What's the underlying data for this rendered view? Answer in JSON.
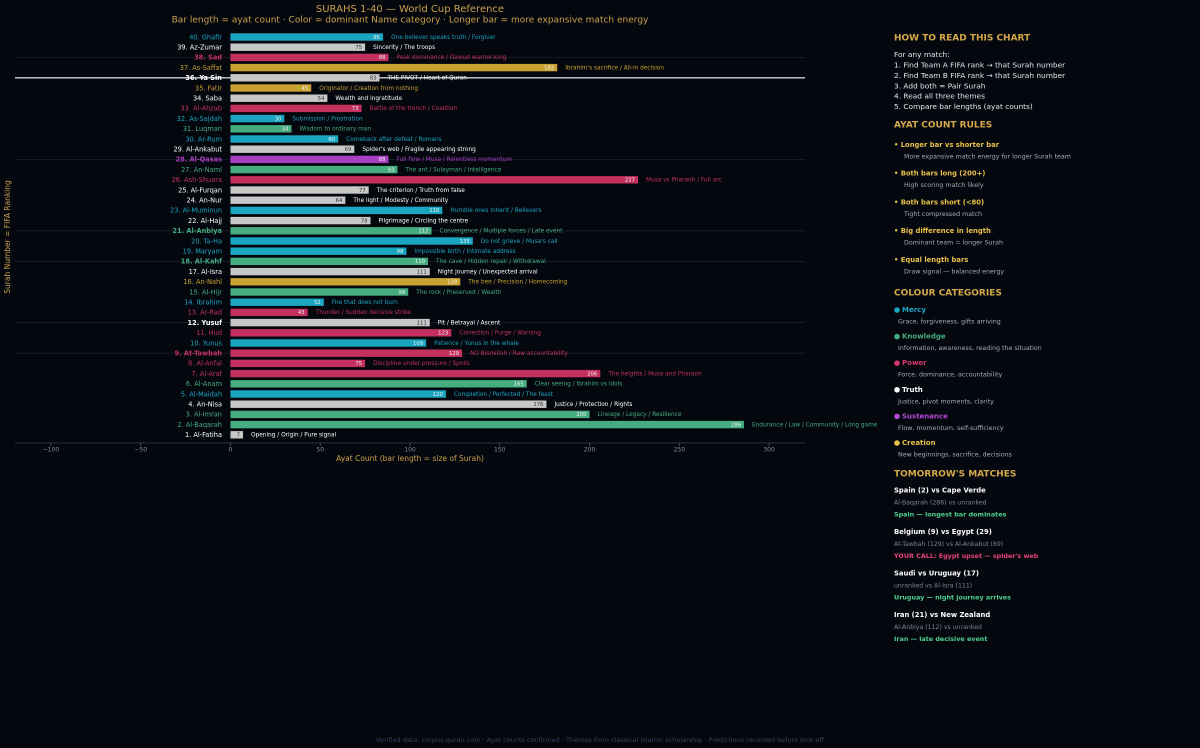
{
  "chart_data": {
    "type": "bar",
    "orientation": "horizontal",
    "title": "SURAHS 1-40 — World Cup Reference",
    "subtitle": "Bar length = ayat count  ·  Color = dominant Name category  ·  Longer bar = more expansive match energy",
    "xlabel": "Ayat Count (bar length = size of Surah)",
    "ylabel": "Surah Number = FIFA Ranking",
    "categories": [
      "40. Ghafir",
      "39. Az-Zumar",
      "38. Sad",
      "37. As-Saffat",
      "36. Ya Sin",
      "35. Fatir",
      "34. Saba",
      "33. Al-Ahzab",
      "32. As-Sajdah",
      "31. Luqman",
      "30. Ar-Rum",
      "29. Al-Ankabut",
      "28. Al-Qasas",
      "27. An-Naml",
      "26. Ash-Shuara",
      "25. Al-Furqan",
      "24. An-Nur",
      "23. Al-Muminun",
      "22. Al-Hajj",
      "21. Al-Anbiya",
      "20. Ta-Ha",
      "19. Maryam",
      "18. Al-Kahf",
      "17. Al-Isra",
      "16. An-Nahl",
      "15. Al-Hijr",
      "14. Ibrahim",
      "13. Ar-Rad",
      "12. Yusuf",
      "11. Hud",
      "10. Yunus",
      "9. At-Tawbah",
      "8. Al-Anfal",
      "7. Al-Araf",
      "6. Al-Anam",
      "5. Al-Maidah",
      "4. An-Nisa",
      "3. Al-Imran",
      "2. Al-Baqarah",
      "1. Al-Fatiha"
    ],
    "values": [
      85,
      75,
      88,
      182,
      83,
      45,
      54,
      73,
      30,
      34,
      60,
      69,
      88,
      93,
      227,
      77,
      64,
      118,
      78,
      112,
      135,
      98,
      110,
      111,
      128,
      99,
      52,
      43,
      111,
      123,
      109,
      129,
      75,
      206,
      165,
      120,
      176,
      200,
      286,
      7
    ],
    "colors": [
      "#1aa6c0",
      "#c8c8c8",
      "#c4315f",
      "#c9a332",
      "#c8c8c8",
      "#c9a332",
      "#c8c8c8",
      "#c4315f",
      "#1aa6c0",
      "#45ad7f",
      "#1aa6c0",
      "#c8c8c8",
      "#a93fc2",
      "#45ad7f",
      "#c4315f",
      "#c8c8c8",
      "#c8c8c8",
      "#1aa6c0",
      "#c8c8c8",
      "#45ad7f",
      "#1aa6c0",
      "#1aa6c0",
      "#45ad7f",
      "#c8c8c8",
      "#c9a332",
      "#45ad7f",
      "#1aa6c0",
      "#c4315f",
      "#c8c8c8",
      "#c4315f",
      "#1aa6c0",
      "#c4315f",
      "#c4315f",
      "#c4315f",
      "#45ad7f",
      "#1aa6c0",
      "#c8c8c8",
      "#45ad7f",
      "#45ad7f",
      "#c8c8c8"
    ],
    "themes": [
      "One believer speaks truth / Forgiver",
      "Sincerity / The troops",
      "Peak dominance / Dawud warrior-king",
      "Ibrahim's sacrifice / All-in decision",
      "THE PIVOT / Heart of Quran",
      "Originator / Creation from nothing",
      "Wealth and ingratitude",
      "Battle of the trench / Coalition",
      "Submission / Prostration",
      "Wisdom to ordinary man",
      "Comeback after defeat / Romans",
      "Spider's web / Fragile appearing strong",
      "Full flow / Musa / Relentless momentum",
      "The ant / Sulayman / Intelligence",
      "Musa vs Pharaoh / Full arc",
      "The criterion / Truth from false",
      "The light / Modesty / Community",
      "Humble ones inherit / Believers",
      "Pilgrimage / Circling the centre",
      "Convergence / Multiple forces / Late event",
      "Do not grieve / Musa's call",
      "Impossible birth / Intimate address",
      "The cave / Hidden repair / Withdrawal",
      "Night journey / Unexpected arrival",
      "The bee / Precision / Homecoming",
      "The rock / Preserved / Wealth",
      "Fire that does not burn",
      "Thunder / Sudden decisive strike",
      "Pit / Betrayal / Ascent",
      "Correction / Purge / Warning",
      "Patience / Yunus in the whale",
      "NO Bismillah / Raw accountability",
      "Discipline under pressure / Spoils",
      "The heights / Musa and Pharaoh",
      "Clear seeing / Ibrahim vs idols",
      "Completion / Perfected / The feast",
      "Justice / Protection / Rights",
      "Lineage / Legacy / Resilience",
      "Endurance / Law / Community / Long game",
      "Opening / Origin / Pure signal"
    ],
    "styles": [
      "normal",
      "normal",
      "bold",
      "normal",
      "pivot",
      "normal",
      "normal",
      "normal",
      "normal",
      "normal",
      "normal",
      "normal",
      "bold",
      "normal",
      "normal",
      "normal",
      "normal",
      "normal",
      "normal",
      "bold",
      "normal",
      "normal",
      "bold",
      "normal",
      "normal",
      "normal",
      "normal",
      "normal",
      "bold",
      "normal",
      "normal",
      "bold",
      "normal",
      "normal",
      "normal",
      "normal",
      "normal",
      "normal",
      "normal",
      "normal"
    ],
    "xlim": [
      -120,
      320
    ],
    "xticks": [
      {
        "value": -100,
        "label": "−100"
      },
      {
        "value": -50,
        "label": "−50"
      },
      0,
      50,
      100,
      150,
      200,
      250,
      300
    ]
  },
  "side_panel": {
    "how_to_read": {
      "heading": "HOW TO READ THIS CHART",
      "intro": "For any match:",
      "steps": [
        "1. Find Team A FIFA rank → that Surah number",
        "2. Find Team B FIFA rank → that Surah number",
        "3. Add both = Pair Surah",
        "4. Read all three themes",
        "5. Compare bar lengths (ayat counts)"
      ]
    },
    "rules": {
      "heading": "AYAT COUNT RULES",
      "items": [
        {
          "title": "• Longer bar vs shorter bar",
          "text": "More expansive match energy for longer Surah team"
        },
        {
          "title": "• Both bars long (200+)",
          "text": "High scoring match likely"
        },
        {
          "title": "• Both bars short (<80)",
          "text": "Tight compressed match"
        },
        {
          "title": "• Big difference in length",
          "text": "Dominant team = longer Surah"
        },
        {
          "title": "• Equal length bars",
          "text": "Draw signal — balanced energy"
        }
      ]
    },
    "colour_categories": {
      "heading": "COLOUR CATEGORIES",
      "items": [
        {
          "name": "Mercy",
          "color": "#1aa6c0",
          "text": "Grace, forgiveness, gifts arriving"
        },
        {
          "name": "Knowledge",
          "color": "#45ad7f",
          "text": "Information, awareness, reading the situation"
        },
        {
          "name": "Power",
          "color": "#d6386b",
          "text": "Force, dominance, accountability"
        },
        {
          "name": "Truth",
          "color": "#ffffff",
          "text": "Justice, pivot moments, clarity"
        },
        {
          "name": "Sustenance",
          "color": "#b349d0",
          "text": "Flow, momentum, self-sufficiency"
        },
        {
          "name": "Creation",
          "color": "#e8c14a",
          "text": "New beginnings, sacrifice, decisions"
        }
      ]
    },
    "matches": {
      "heading": "TOMORROW'S MATCHES",
      "items": [
        {
          "title": "Spain (2) vs Cape Verde",
          "detail": "Al-Baqarah (286) vs unranked",
          "call": "Spain — longest bar dominates",
          "call_color": "#4fd18f"
        },
        {
          "title": "Belgium (9) vs Egypt (29)",
          "detail": "At-Tawbah (129) vs Al-Ankabut (69)",
          "call": "YOUR CALL: Egypt upset — spider's web",
          "call_color": "#e8457a"
        },
        {
          "title": "Saudi vs Uruguay (17)",
          "detail": "unranked vs Al-Isra (111)",
          "call": "Uruguay — night journey arrives",
          "call_color": "#4fd18f"
        },
        {
          "title": "Iran (21) vs New Zealand",
          "detail": "Al-Anbiya (112) vs unranked",
          "call": "Iran — late decisive event",
          "call_color": "#4fd18f"
        }
      ]
    }
  },
  "footer": "Verified data: corpus.quran.com  ·  Ayat counts confirmed  ·  Themes from classical Islamic scholarship  ·  Predictions recorded before kick-off"
}
